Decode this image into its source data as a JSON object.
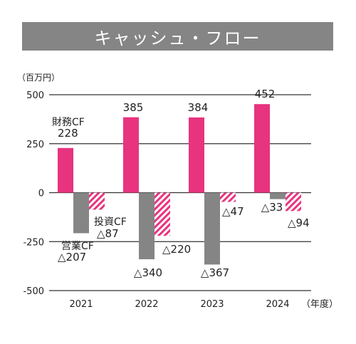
{
  "title": "キャッシュ・フロー",
  "colors": {
    "operating": "#e8337f",
    "investing": "#858585",
    "financing_stripe": "#e8337f",
    "grid": "#333333"
  },
  "chart_data": {
    "type": "bar",
    "title": "キャッシュ・フロー",
    "y_unit_label": "（百万円）",
    "x_unit_label": "（年度）",
    "categories": [
      "2021",
      "2022",
      "2023",
      "2024"
    ],
    "ylim": [
      -500,
      500
    ],
    "yticks": [
      {
        "value": 500,
        "label": "500"
      },
      {
        "value": 250,
        "label": "250"
      },
      {
        "value": 0,
        "label": "0"
      },
      {
        "value": -250,
        "label": "-250"
      },
      {
        "value": -500,
        "label": "-500"
      }
    ],
    "grid": true,
    "series": [
      {
        "name": "財務CF",
        "style": "solid-pink",
        "values": [
          228,
          385,
          384,
          452
        ],
        "labels": [
          "228",
          "385",
          "384",
          "452"
        ]
      },
      {
        "name": "営業CF",
        "style": "solid-gray",
        "values": [
          -207,
          -340,
          -367,
          -33
        ],
        "labels": [
          "△207",
          "△340",
          "△367",
          "△33"
        ]
      },
      {
        "name": "投資CF",
        "style": "hatched-pink",
        "values": [
          -87,
          -220,
          -47,
          -94
        ],
        "labels": [
          "△87",
          "△220",
          "△47",
          "△94"
        ]
      }
    ]
  }
}
